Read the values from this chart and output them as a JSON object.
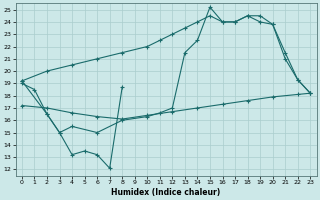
{
  "xlabel": "Humidex (Indice chaleur)",
  "bg_color": "#cce8e8",
  "grid_color": "#aacece",
  "line_color": "#1a6b6b",
  "xlim": [
    -0.5,
    23.5
  ],
  "ylim": [
    11.5,
    25.5
  ],
  "xticks": [
    0,
    1,
    2,
    3,
    4,
    5,
    6,
    7,
    8,
    9,
    10,
    11,
    12,
    13,
    14,
    15,
    16,
    17,
    18,
    19,
    20,
    21,
    22,
    23
  ],
  "yticks": [
    12,
    13,
    14,
    15,
    16,
    17,
    18,
    19,
    20,
    21,
    22,
    23,
    24,
    25
  ],
  "line1_x": [
    0,
    1,
    2,
    3,
    4,
    5,
    6,
    7,
    8
  ],
  "line1_y": [
    19.0,
    18.5,
    16.5,
    15.0,
    13.2,
    13.5,
    13.2,
    12.1,
    18.7
  ],
  "line2_x": [
    0,
    2,
    4,
    6,
    8,
    10,
    12,
    14,
    16,
    18,
    20,
    22,
    23
  ],
  "line2_y": [
    17.2,
    17.0,
    16.6,
    16.3,
    16.1,
    16.4,
    16.7,
    17.0,
    17.3,
    17.6,
    17.9,
    18.1,
    18.2
  ],
  "line3_x": [
    0,
    2,
    4,
    6,
    8,
    10,
    11,
    12,
    13,
    14,
    15,
    16,
    17,
    18,
    19,
    20,
    21,
    22,
    23
  ],
  "line3_y": [
    19.2,
    20.0,
    20.5,
    21.0,
    21.5,
    22.0,
    22.5,
    23.0,
    23.5,
    24.0,
    24.5,
    24.0,
    24.0,
    24.5,
    24.5,
    23.8,
    21.5,
    19.3,
    18.2
  ],
  "line4_x": [
    0,
    2,
    3,
    4,
    6,
    8,
    10,
    11,
    12,
    13,
    14,
    15,
    16,
    17,
    18,
    19,
    20,
    21,
    22,
    23
  ],
  "line4_y": [
    19.2,
    16.5,
    15.0,
    15.5,
    15.0,
    16.0,
    16.3,
    16.6,
    17.0,
    21.5,
    22.5,
    25.2,
    24.0,
    24.0,
    24.5,
    24.0,
    23.8,
    21.0,
    19.3,
    18.2
  ]
}
